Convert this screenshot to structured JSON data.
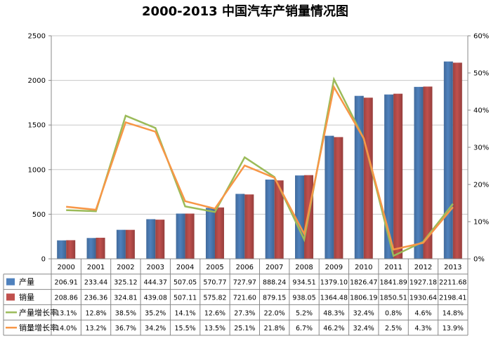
{
  "chart_data": {
    "type": "bar",
    "title": "2000-2013 中国汽车产销量情况图",
    "categories": [
      "2000",
      "2001",
      "2002",
      "2003",
      "2004",
      "2005",
      "2006",
      "2007",
      "2008",
      "2009",
      "2010",
      "2011",
      "2012",
      "2013"
    ],
    "series": [
      {
        "name": "产量",
        "kind": "bar",
        "axis": "left",
        "color": "#4F81BD",
        "values": [
          206.91,
          233.44,
          325.12,
          444.37,
          507.05,
          570.77,
          727.97,
          888.24,
          934.51,
          1379.1,
          1826.47,
          1841.89,
          1927.18,
          2211.68
        ],
        "labels": [
          "206.91",
          "233.44",
          "325.12",
          "444.37",
          "507.05",
          "570.77",
          "727.97",
          "888.24",
          "934.51",
          "1379.10",
          "1826.47",
          "1841.89",
          "1927.18",
          "2211.68"
        ]
      },
      {
        "name": "销量",
        "kind": "bar",
        "axis": "left",
        "color": "#C0504D",
        "values": [
          208.86,
          236.36,
          324.81,
          439.08,
          507.11,
          575.82,
          721.6,
          879.15,
          938.05,
          1364.48,
          1806.19,
          1850.51,
          1930.64,
          2198.41
        ],
        "labels": [
          "208.86",
          "236.36",
          "324.81",
          "439.08",
          "507.11",
          "575.82",
          "721.60",
          "879.15",
          "938.05",
          "1364.48",
          "1806.19",
          "1850.51",
          "1930.64",
          "2198.41"
        ]
      },
      {
        "name": "产量增长率",
        "kind": "line",
        "axis": "right",
        "color": "#9BBB59",
        "values": [
          13.1,
          12.8,
          38.5,
          35.2,
          14.1,
          12.6,
          27.3,
          22.0,
          5.2,
          48.3,
          32.4,
          0.8,
          4.6,
          14.8
        ],
        "labels": [
          "13.1%",
          "12.8%",
          "38.5%",
          "35.2%",
          "14.1%",
          "12.6%",
          "27.3%",
          "22.0%",
          "5.2%",
          "48.3%",
          "32.4%",
          "0.8%",
          "4.6%",
          "14.8%"
        ]
      },
      {
        "name": "销量增长率",
        "kind": "line",
        "axis": "right",
        "color": "#F79646",
        "values": [
          14.0,
          13.2,
          36.7,
          34.2,
          15.5,
          13.5,
          25.1,
          21.8,
          6.7,
          46.2,
          32.4,
          2.5,
          4.3,
          13.9
        ],
        "labels": [
          "14.0%",
          "13.2%",
          "36.7%",
          "34.2%",
          "15.5%",
          "13.5%",
          "25.1%",
          "21.8%",
          "6.7%",
          "46.2%",
          "32.4%",
          "2.5%",
          "4.3%",
          "13.9%"
        ]
      }
    ],
    "y_left": {
      "range": [
        0,
        2500
      ],
      "ticks": [
        "0",
        "500",
        "1000",
        "1500",
        "2000",
        "2500"
      ]
    },
    "y_right": {
      "range": [
        0,
        60
      ],
      "ticks": [
        "0%",
        "10%",
        "20%",
        "30%",
        "40%",
        "50%",
        "60%"
      ]
    },
    "grid": true,
    "legend": "data-table-below"
  }
}
